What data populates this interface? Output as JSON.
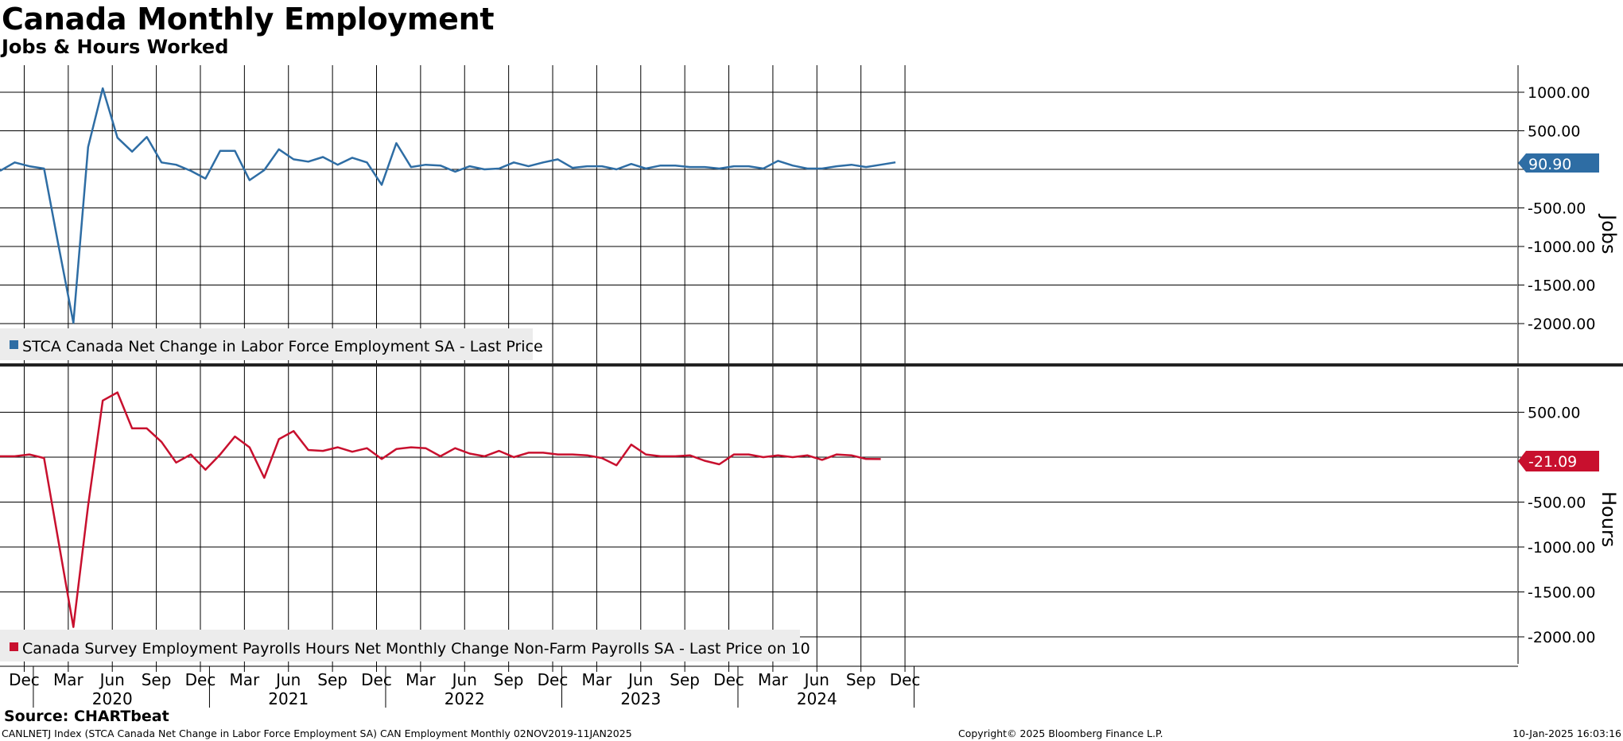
{
  "title": "Canada Monthly Employment",
  "subtitle": "Jobs & Hours Worked",
  "source": "Source: CHARTbeat",
  "footer": {
    "left": "CANLNETJ Index (STCA Canada Net Change in Labor Force Employment SA) CAN Employment  Monthly 02NOV2019-11JAN2025",
    "center": "Copyright© 2025 Bloomberg Finance L.P.",
    "right": "10-Jan-2025 16:03:16"
  },
  "colors": {
    "jobs": "#2e6da4",
    "hours": "#c8102e",
    "grid": "#000000"
  },
  "chart_data": [
    {
      "type": "line",
      "ylabel": "Jobs",
      "yticks": [
        1000,
        500,
        0,
        -500,
        -1000,
        -1500,
        -2000
      ],
      "ytick_labels": [
        "1000.00",
        "500.00",
        "",
        "-500.00",
        "-1000.00",
        "-1500.00",
        "-2000.00"
      ],
      "ylim": [
        -2500,
        1350
      ],
      "grid": true,
      "legend_position": "bottom-left",
      "series": [
        {
          "name": "STCA Canada Net Change in Labor Force Employment SA - Last Price",
          "color": "#2e6da4",
          "last_value_label": "90.90",
          "start": "2019-11",
          "values": [
            -20,
            90,
            40,
            10,
            -1000,
            -1990,
            290,
            1050,
            410,
            230,
            420,
            90,
            60,
            -20,
            -120,
            240,
            240,
            -140,
            -10,
            260,
            130,
            100,
            160,
            60,
            150,
            90,
            -200,
            340,
            30,
            60,
            50,
            -30,
            40,
            0,
            10,
            90,
            40,
            90,
            130,
            20,
            40,
            40,
            0,
            70,
            10,
            50,
            50,
            30,
            30,
            10,
            40,
            40,
            10,
            110,
            50,
            10,
            10,
            40,
            60,
            30,
            60,
            90.9
          ]
        }
      ]
    },
    {
      "type": "line",
      "ylabel": "Hours",
      "yticks": [
        500,
        0,
        -500,
        -1000,
        -1500,
        -2000
      ],
      "ytick_labels": [
        "500.00",
        "",
        "-500.00",
        "-1000.00",
        "-1500.00",
        "-2000.00"
      ],
      "ylim": [
        -2300,
        750
      ],
      "grid": true,
      "legend_position": "bottom-left",
      "series": [
        {
          "name": "Canada Survey Employment Payrolls Hours Net Monthly Change Non-Farm Payrolls SA - Last Price on 10",
          "color": "#c8102e",
          "last_value_label": "-21.09",
          "start": "2019-11",
          "values": [
            10,
            10,
            30,
            -10,
            -950,
            -1890,
            -540,
            630,
            720,
            320,
            320,
            170,
            -60,
            30,
            -140,
            30,
            230,
            110,
            -230,
            200,
            290,
            80,
            70,
            110,
            60,
            100,
            -20,
            90,
            110,
            100,
            10,
            100,
            40,
            10,
            70,
            0,
            50,
            50,
            30,
            30,
            20,
            -10,
            -90,
            140,
            30,
            10,
            10,
            20,
            -40,
            -80,
            30,
            30,
            0,
            20,
            0,
            20,
            -30,
            30,
            20,
            -20,
            -21.09
          ]
        }
      ]
    }
  ],
  "x_axis": {
    "month_ticks": [
      "Dec",
      "Mar",
      "Jun",
      "Sep",
      "Dec",
      "Mar",
      "Jun",
      "Sep",
      "Dec",
      "Mar",
      "Jun",
      "Sep",
      "Dec",
      "Mar",
      "Jun",
      "Sep",
      "Dec",
      "Mar",
      "Jun",
      "Sep",
      "Dec"
    ],
    "year_labels": [
      "2020",
      "2021",
      "2022",
      "2023",
      "2024"
    ]
  }
}
